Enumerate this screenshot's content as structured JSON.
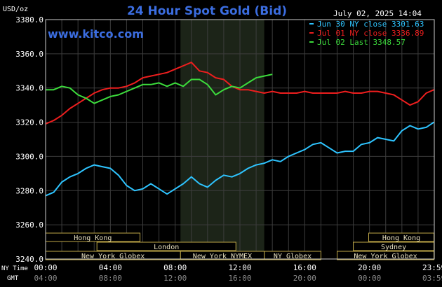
{
  "chart_data": {
    "type": "line",
    "title": "24 Hour Spot Gold (Bid)",
    "watermark": "www.kitco.com",
    "date_label": "July 02, 2025 14:04",
    "ylabel": "USD/oz",
    "ylim": [
      3240,
      3380
    ],
    "y_ticks": [
      "3380.0",
      "3360.0",
      "3340.0",
      "3320.0",
      "3300.0",
      "3280.0",
      "3260.0",
      "3240.0"
    ],
    "x_axis_name_ny": "NY Time",
    "x_axis_name_gmt": "GMT",
    "x_ticks_ny": [
      "00:00",
      "04:00",
      "08:00",
      "12:00",
      "16:00",
      "20:00",
      "23:59"
    ],
    "x_ticks_gmt": [
      "04:00",
      "08:00",
      "12:00",
      "16:00",
      "20:00",
      "00:00",
      "03:59"
    ],
    "x_tick_hours": [
      0,
      4,
      8,
      12,
      16,
      20,
      23.98
    ],
    "grid": true,
    "colors": {
      "background": "#000000",
      "grid": "#3c3c3c",
      "axis": "#cccccc",
      "title": "#3b6de0",
      "nymex_shade": "#1c2418",
      "session_box": "#bfa848",
      "session_text": "#e8e0c0"
    },
    "nymex_hours": [
      8.33,
      13.5
    ],
    "series": [
      {
        "name": "Jun 30 NY close 3301.63",
        "color": "#2ec4ff",
        "x": [
          0,
          0.5,
          1,
          1.5,
          2,
          2.5,
          3,
          3.5,
          4,
          4.5,
          5,
          5.5,
          6,
          6.5,
          7,
          7.5,
          8,
          8.5,
          9,
          9.5,
          10,
          10.5,
          11,
          11.5,
          12,
          12.5,
          13,
          13.5,
          14,
          14.5,
          15,
          15.5,
          16,
          16.5,
          17,
          17.5,
          18,
          18.5,
          19,
          19.5,
          20,
          20.5,
          21,
          21.5,
          22,
          22.5,
          23,
          23.5,
          23.98
        ],
        "values": [
          3277,
          3279,
          3285,
          3288,
          3290,
          3293,
          3295,
          3294,
          3293,
          3289,
          3283,
          3280,
          3281,
          3284,
          3281,
          3278,
          3281,
          3284,
          3288,
          3284,
          3282,
          3286,
          3289,
          3288,
          3290,
          3293,
          3295,
          3296,
          3298,
          3297,
          3300,
          3302,
          3304,
          3307,
          3308,
          3305,
          3302,
          3303,
          3303,
          3307,
          3308,
          3311,
          3310,
          3309,
          3315,
          3318,
          3316,
          3317,
          3320
        ]
      },
      {
        "name": "Jul 01 NY close 3336.89",
        "color": "#ee1e1e",
        "x": [
          0,
          0.5,
          1,
          1.5,
          2,
          2.5,
          3,
          3.5,
          4,
          4.5,
          5,
          5.5,
          6,
          6.5,
          7,
          7.5,
          8,
          8.5,
          9,
          9.5,
          10,
          10.5,
          11,
          11.5,
          12,
          12.5,
          13,
          13.5,
          14,
          14.5,
          15,
          15.5,
          16,
          16.5,
          17,
          17.5,
          18,
          18.5,
          19,
          19.5,
          20,
          20.5,
          21,
          21.5,
          22,
          22.5,
          23,
          23.5,
          23.98
        ],
        "values": [
          3319,
          3321,
          3324,
          3328,
          3331,
          3334,
          3337,
          3339,
          3340,
          3340,
          3341,
          3343,
          3346,
          3347,
          3348,
          3349,
          3351,
          3353,
          3355,
          3350,
          3349,
          3346,
          3345,
          3341,
          3339,
          3339,
          3338,
          3337,
          3338,
          3337,
          3337,
          3337,
          3338,
          3337,
          3337,
          3337,
          3337,
          3338,
          3337,
          3337,
          3338,
          3338,
          3337,
          3336,
          3333,
          3330,
          3332,
          3337,
          3339
        ]
      },
      {
        "name": "Jul 02 Last 3348.57",
        "color": "#3cdc3c",
        "x": [
          0,
          0.5,
          1,
          1.5,
          2,
          2.5,
          3,
          3.5,
          4,
          4.5,
          5,
          5.5,
          6,
          6.5,
          7,
          7.5,
          8,
          8.5,
          9,
          9.5,
          10,
          10.5,
          11,
          11.5,
          12,
          12.5,
          13,
          13.5,
          14
        ],
        "values": [
          3339,
          3339,
          3341,
          3340,
          3336,
          3334,
          3331,
          3333,
          3335,
          3336,
          3338,
          3340,
          3342,
          3342,
          3343,
          3341,
          3343,
          3341,
          3345,
          3345,
          3342,
          3336,
          3339,
          3341,
          3340,
          3343,
          3346,
          3347,
          3348
        ]
      }
    ],
    "session_bars": [
      {
        "label": "Hong Kong",
        "row": 0,
        "start": 0,
        "end": 5.83
      },
      {
        "label": "London",
        "row": 1,
        "start": 3.17,
        "end": 11.75
      },
      {
        "label": "New York Globex",
        "row": 2,
        "start": 0,
        "end": 8.33
      },
      {
        "label": "New York NYMEX",
        "row": 2,
        "start": 8.33,
        "end": 13.5
      },
      {
        "label": "NY Globex",
        "row": 2,
        "start": 13.5,
        "end": 17.0
      },
      {
        "label": "Hong Kong",
        "row": 0,
        "start": 19.95,
        "end": 23.98
      },
      {
        "label": "Sydney",
        "row": 1,
        "start": 19.0,
        "end": 23.98
      },
      {
        "label": "New York Globex",
        "row": 2,
        "start": 18.0,
        "end": 23.98
      }
    ]
  }
}
